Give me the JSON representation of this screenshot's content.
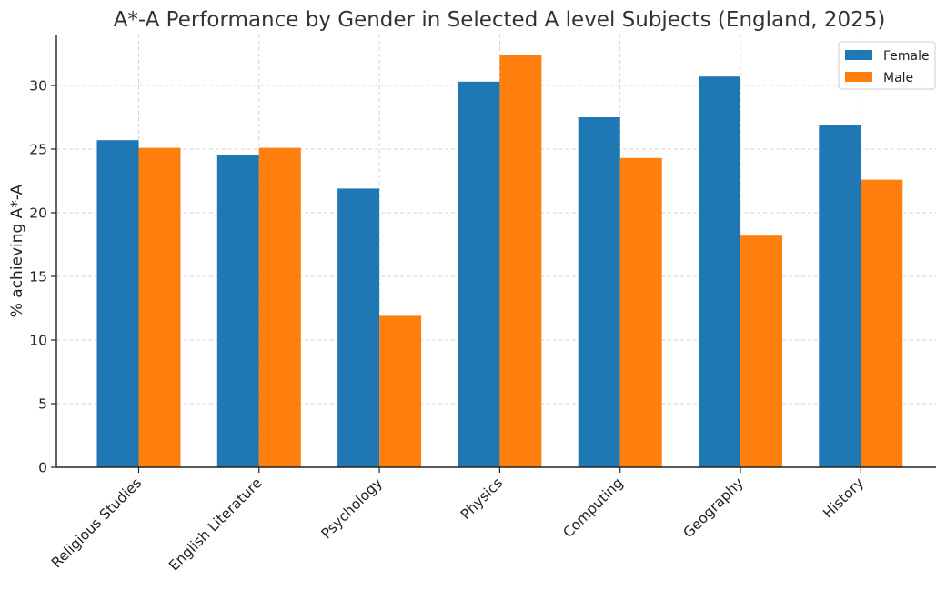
{
  "chart_data": {
    "type": "bar",
    "title": "A*-A Performance by Gender in Selected A level Subjects (England, 2025)",
    "xlabel": "",
    "ylabel": "% achieving A*-A",
    "categories": [
      "Religious Studies",
      "English Literature",
      "Psychology",
      "Physics",
      "Computing",
      "Geography",
      "History"
    ],
    "series": [
      {
        "name": "Female",
        "color": "#1f77b4",
        "values": [
          25.7,
          24.5,
          21.9,
          30.3,
          27.5,
          30.7,
          26.9
        ]
      },
      {
        "name": "Male",
        "color": "#ff7f0e",
        "values": [
          25.1,
          25.1,
          11.9,
          32.4,
          24.3,
          18.2,
          22.6
        ]
      }
    ],
    "ylim": [
      0,
      34
    ],
    "yticks": [
      0,
      5,
      10,
      15,
      20,
      25,
      30
    ],
    "grid": true,
    "legend_position": "top-right"
  }
}
